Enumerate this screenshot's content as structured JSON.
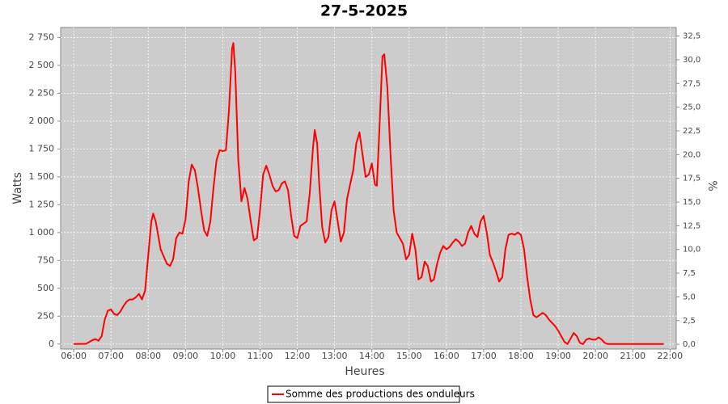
{
  "chart_data": {
    "type": "line",
    "title": "27-5-2025",
    "x_label": "Heures",
    "y_label": "Watts",
    "y2_label": "%",
    "x": [
      "06:00",
      "06:20",
      "06:30",
      "06:35",
      "06:40",
      "06:45",
      "06:50",
      "06:55",
      "07:00",
      "07:05",
      "07:10",
      "07:15",
      "07:20",
      "07:25",
      "07:30",
      "07:35",
      "07:40",
      "07:45",
      "07:50",
      "07:55",
      "08:00",
      "08:05",
      "08:08",
      "08:12",
      "08:20",
      "08:30",
      "08:35",
      "08:40",
      "08:45",
      "08:50",
      "08:55",
      "09:00",
      "09:05",
      "09:10",
      "09:15",
      "09:20",
      "09:25",
      "09:30",
      "09:35",
      "09:40",
      "09:45",
      "09:50",
      "09:55",
      "10:00",
      "10:05",
      "10:10",
      "10:15",
      "10:17",
      "10:20",
      "10:25",
      "10:30",
      "10:35",
      "10:40",
      "10:45",
      "10:50",
      "10:55",
      "11:00",
      "11:05",
      "11:10",
      "11:15",
      "11:20",
      "11:25",
      "11:30",
      "11:35",
      "11:40",
      "11:45",
      "11:50",
      "11:55",
      "12:00",
      "12:05",
      "12:10",
      "12:15",
      "12:20",
      "12:25",
      "12:28",
      "12:32",
      "12:35",
      "12:40",
      "12:45",
      "12:50",
      "12:55",
      "13:00",
      "13:05",
      "13:10",
      "13:15",
      "13:20",
      "13:25",
      "13:30",
      "13:35",
      "13:40",
      "13:45",
      "13:50",
      "13:55",
      "14:00",
      "14:05",
      "14:08",
      "14:12",
      "14:17",
      "14:20",
      "14:25",
      "14:30",
      "14:35",
      "14:40",
      "14:45",
      "14:50",
      "14:55",
      "15:00",
      "15:05",
      "15:10",
      "15:15",
      "15:20",
      "15:25",
      "15:30",
      "15:35",
      "15:40",
      "15:45",
      "15:50",
      "15:55",
      "16:00",
      "16:05",
      "16:10",
      "16:15",
      "16:20",
      "16:25",
      "16:30",
      "16:35",
      "16:40",
      "16:45",
      "16:50",
      "16:55",
      "17:00",
      "17:05",
      "17:10",
      "17:15",
      "17:20",
      "17:25",
      "17:30",
      "17:35",
      "17:40",
      "17:45",
      "17:50",
      "17:55",
      "18:00",
      "18:05",
      "18:10",
      "18:15",
      "18:20",
      "18:25",
      "18:30",
      "18:35",
      "18:40",
      "18:45",
      "18:50",
      "18:55",
      "19:00",
      "19:05",
      "19:10",
      "19:15",
      "19:20",
      "19:25",
      "19:30",
      "19:35",
      "19:40",
      "19:45",
      "19:50",
      "19:55",
      "20:00",
      "20:05",
      "20:10",
      "20:15",
      "20:20",
      "20:30",
      "21:00",
      "21:30",
      "21:50"
    ],
    "series": [
      {
        "name": "Somme des productions des onduleurs",
        "color": "#ff0000",
        "values": [
          0,
          2,
          35,
          45,
          30,
          70,
          220,
          300,
          310,
          270,
          260,
          290,
          340,
          380,
          400,
          400,
          420,
          450,
          400,
          480,
          800,
          1100,
          1170,
          1100,
          850,
          720,
          700,
          760,
          950,
          1000,
          990,
          1120,
          1450,
          1610,
          1560,
          1400,
          1200,
          1020,
          970,
          1100,
          1400,
          1650,
          1740,
          1730,
          1740,
          2100,
          2650,
          2700,
          2450,
          1650,
          1280,
          1400,
          1300,
          1100,
          930,
          950,
          1200,
          1520,
          1600,
          1520,
          1420,
          1370,
          1380,
          1440,
          1460,
          1380,
          1150,
          970,
          950,
          1060,
          1080,
          1100,
          1350,
          1750,
          1920,
          1800,
          1450,
          1050,
          910,
          960,
          1200,
          1280,
          1100,
          920,
          1000,
          1300,
          1430,
          1560,
          1800,
          1900,
          1700,
          1500,
          1520,
          1620,
          1430,
          1420,
          1900,
          2580,
          2600,
          2300,
          1700,
          1200,
          1000,
          950,
          900,
          760,
          800,
          990,
          850,
          580,
          600,
          740,
          700,
          560,
          580,
          720,
          820,
          880,
          850,
          870,
          910,
          940,
          920,
          880,
          900,
          1000,
          1060,
          990,
          960,
          1100,
          1150,
          1000,
          800,
          730,
          650,
          560,
          600,
          850,
          980,
          990,
          980,
          1000,
          980,
          850,
          600,
          400,
          260,
          240,
          260,
          280,
          260,
          220,
          190,
          160,
          120,
          70,
          20,
          0,
          50,
          100,
          70,
          10,
          0,
          40,
          50,
          40,
          40,
          60,
          40,
          10,
          0,
          0,
          0,
          0,
          0
        ]
      }
    ],
    "xlim": [
      "05:39",
      "22:10"
    ],
    "xticks": [
      "06:00",
      "07:00",
      "08:00",
      "09:00",
      "10:00",
      "11:00",
      "12:00",
      "13:00",
      "14:00",
      "15:00",
      "16:00",
      "17:00",
      "18:00",
      "19:00",
      "20:00",
      "21:00",
      "22:00"
    ],
    "ylim": [
      -45,
      2840
    ],
    "yticks": [
      0,
      250,
      500,
      750,
      {
        "value": 1000,
        "label": "1 000"
      },
      {
        "value": 1250,
        "label": "1 250"
      },
      {
        "value": 1500,
        "label": "1 500"
      },
      {
        "value": 1750,
        "label": "1 750"
      },
      {
        "value": 2000,
        "label": "2 000"
      },
      {
        "value": 2250,
        "label": "2 250"
      },
      {
        "value": 2500,
        "label": "2 500"
      },
      {
        "value": 2750,
        "label": "2 750"
      }
    ],
    "y2lim": [
      -0.5,
      33.4
    ],
    "y2ticks": [
      {
        "value": 0,
        "label": "0,0"
      },
      {
        "value": 2.5,
        "label": "2,5"
      },
      {
        "value": 5,
        "label": "5,0"
      },
      {
        "value": 7.5,
        "label": "7,5"
      },
      {
        "value": 10,
        "label": "10,0"
      },
      {
        "value": 12.5,
        "label": "12,5"
      },
      {
        "value": 15,
        "label": "15,0"
      },
      {
        "value": 17.5,
        "label": "17,5"
      },
      {
        "value": 20,
        "label": "20,0"
      },
      {
        "value": 22.5,
        "label": "22,5"
      },
      {
        "value": 25,
        "label": "25,0"
      },
      {
        "value": 27.5,
        "label": "27,5"
      },
      {
        "value": 30,
        "label": "30,0"
      },
      {
        "value": 32.5,
        "label": "32,5"
      }
    ],
    "grid": true,
    "legend": "bottom"
  }
}
